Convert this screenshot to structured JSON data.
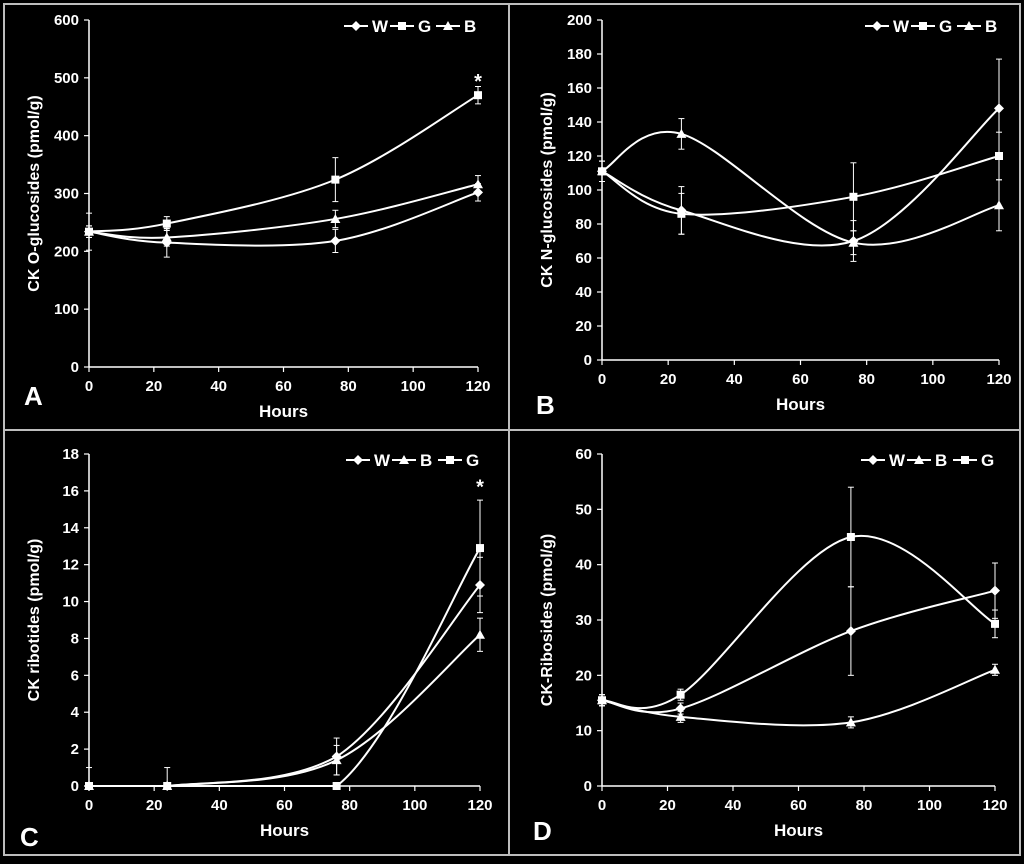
{
  "figure": {
    "background": "#000000",
    "foreground": "#ffffff",
    "frame_color": "#bdbdbd"
  },
  "chart_data": [
    {
      "type": "line",
      "panel_label": "A",
      "xlabel": "Hours",
      "ylabel": "CK O-glucosides (pmol/g)",
      "xlim": [
        0,
        120
      ],
      "ylim": [
        0,
        600
      ],
      "xticks": [
        0,
        20,
        40,
        60,
        80,
        100,
        120
      ],
      "yticks": [
        0,
        100,
        200,
        300,
        400,
        500,
        600
      ],
      "legend": [
        "W",
        "G",
        "B"
      ],
      "legend_position": "top-right",
      "x": [
        0,
        24,
        76,
        120
      ],
      "series": [
        {
          "name": "W",
          "marker": "diamond",
          "values": [
            234,
            215,
            218,
            302
          ],
          "errors": [
            10,
            25,
            20,
            15
          ]
        },
        {
          "name": "G",
          "marker": "square",
          "values": [
            234,
            248,
            324,
            470
          ],
          "errors": [
            10,
            12,
            38,
            15
          ]
        },
        {
          "name": "B",
          "marker": "triangle",
          "values": [
            234,
            224,
            256,
            316
          ],
          "errors": [
            32,
            15,
            15,
            15
          ]
        }
      ],
      "annotations": [
        {
          "text": "*",
          "x": 120,
          "y": 500
        }
      ]
    },
    {
      "type": "line",
      "panel_label": "B",
      "xlabel": "Hours",
      "ylabel": "CK N-glucosides (pmol/g)",
      "xlim": [
        0,
        120
      ],
      "ylim": [
        0,
        200
      ],
      "xticks": [
        0,
        20,
        40,
        60,
        80,
        100,
        120
      ],
      "yticks": [
        0,
        20,
        40,
        60,
        80,
        100,
        120,
        140,
        160,
        180,
        200
      ],
      "legend": [
        "W",
        "G",
        "B"
      ],
      "legend_position": "top-right",
      "x": [
        0,
        24,
        76,
        120
      ],
      "series": [
        {
          "name": "W",
          "marker": "diamond",
          "values": [
            111,
            88,
            70,
            148
          ],
          "errors": [
            6,
            14,
            12,
            29
          ]
        },
        {
          "name": "G",
          "marker": "square",
          "values": [
            111,
            86,
            96,
            120
          ],
          "errors": [
            6,
            12,
            20,
            14
          ]
        },
        {
          "name": "B",
          "marker": "triangle",
          "values": [
            111,
            133,
            69,
            91
          ],
          "errors": [
            6,
            9,
            7,
            15
          ]
        }
      ],
      "annotations": []
    },
    {
      "type": "line",
      "panel_label": "C",
      "xlabel": "Hours",
      "ylabel": "CK ribotides (pmol/g)",
      "xlim": [
        0,
        120
      ],
      "ylim": [
        0,
        18
      ],
      "xticks": [
        0,
        20,
        40,
        60,
        80,
        100,
        120
      ],
      "yticks": [
        0,
        2,
        4,
        6,
        8,
        10,
        12,
        14,
        16,
        18
      ],
      "legend": [
        "W",
        "B",
        "G"
      ],
      "legend_position": "top-right",
      "x": [
        0,
        24,
        76,
        120
      ],
      "series": [
        {
          "name": "W",
          "marker": "diamond",
          "values": [
            0,
            0,
            1.6,
            10.9
          ],
          "errors": [
            1.0,
            1.0,
            1.0,
            1.5
          ]
        },
        {
          "name": "B",
          "marker": "triangle",
          "values": [
            0,
            0,
            1.4,
            8.2
          ],
          "errors": [
            0,
            0,
            0.8,
            0.9
          ]
        },
        {
          "name": "G",
          "marker": "square",
          "values": [
            0,
            0,
            0,
            12.9
          ],
          "errors": [
            0,
            0,
            0,
            2.6
          ]
        }
      ],
      "annotations": [
        {
          "text": "*",
          "x": 120,
          "y": 16.4
        }
      ]
    },
    {
      "type": "line",
      "panel_label": "D",
      "xlabel": "Hours",
      "ylabel": "CK-Ribosides (pmol/g)",
      "xlim": [
        0,
        120
      ],
      "ylim": [
        0,
        60
      ],
      "xticks": [
        0,
        20,
        40,
        60,
        80,
        100,
        120
      ],
      "yticks": [
        0,
        10,
        20,
        30,
        40,
        50,
        60
      ],
      "legend": [
        "W",
        "B",
        "G"
      ],
      "legend_position": "top-right",
      "x": [
        0,
        24,
        76,
        120
      ],
      "series": [
        {
          "name": "W",
          "marker": "diamond",
          "values": [
            15.5,
            14,
            28,
            35.3
          ],
          "errors": [
            1.0,
            1.0,
            8.0,
            5.0
          ]
        },
        {
          "name": "B",
          "marker": "triangle",
          "values": [
            15.5,
            12.5,
            11.5,
            21
          ],
          "errors": [
            1.0,
            1.0,
            1.0,
            1.0
          ]
        },
        {
          "name": "G",
          "marker": "square",
          "values": [
            15.5,
            16.5,
            45,
            29.3
          ],
          "errors": [
            1.0,
            1.0,
            9.0,
            2.5
          ]
        }
      ],
      "annotations": []
    }
  ]
}
